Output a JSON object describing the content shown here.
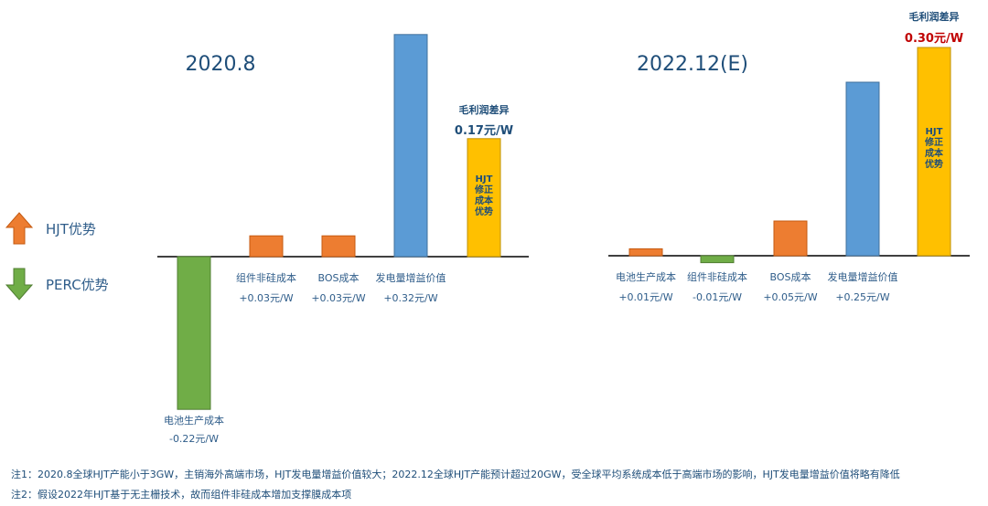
{
  "legend": {
    "hjt_label": "HJT优势",
    "perc_label": "PERC优势"
  },
  "chart_data": [
    {
      "type": "bar",
      "title": "2020.8",
      "unit": "元/W",
      "categories": [
        "电池生产成本",
        "组件非硅成本",
        "BOS成本",
        "发电量增益价值",
        "毛利润差异"
      ],
      "value_labels": [
        "-0.22元/W",
        "+0.03元/W",
        "+0.03元/W",
        "+0.32元/W",
        "0.17元/W"
      ],
      "values": [
        -0.22,
        0.03,
        0.03,
        0.32,
        0.17
      ],
      "bar_colors": [
        "#70AD47",
        "#ED7D31",
        "#ED7D31",
        "#5B9BD5",
        "#FFC000"
      ],
      "result_caption": "HJT修正成本优势"
    },
    {
      "type": "bar",
      "title": "2022.12(E)",
      "unit": "元/W",
      "categories": [
        "电池生产成本",
        "组件非硅成本",
        "BOS成本",
        "发电量增益价值",
        "毛利润差异"
      ],
      "value_labels": [
        "+0.01元/W",
        "-0.01元/W",
        "+0.05元/W",
        "+0.25元/W",
        "0.30元/W"
      ],
      "values": [
        0.01,
        -0.01,
        0.05,
        0.25,
        0.3
      ],
      "bar_colors": [
        "#ED7D31",
        "#70AD47",
        "#ED7D31",
        "#5B9BD5",
        "#FFC000"
      ],
      "result_caption": "HJT修正成本优势"
    }
  ],
  "colors": {
    "up_arrow": "#ED7D31",
    "down_arrow": "#70AD47",
    "axis": "#000000",
    "label_text": "#2F5D8A",
    "title_text": "#1F4E79",
    "highlight_value_2022": "#C00000"
  },
  "notes": [
    "注1：2020.8全球HJT产能小于3GW，主销海外高端市场，HJT发电量增益价值较大；2022.12全球HJT产能预计超过20GW，受全球平均系统成本低于高端市场的影响，HJT发电量增益价值将略有降低",
    "注2：假设2022年HJT基于无主栅技术，故而组件非硅成本增加支撑膜成本项"
  ]
}
